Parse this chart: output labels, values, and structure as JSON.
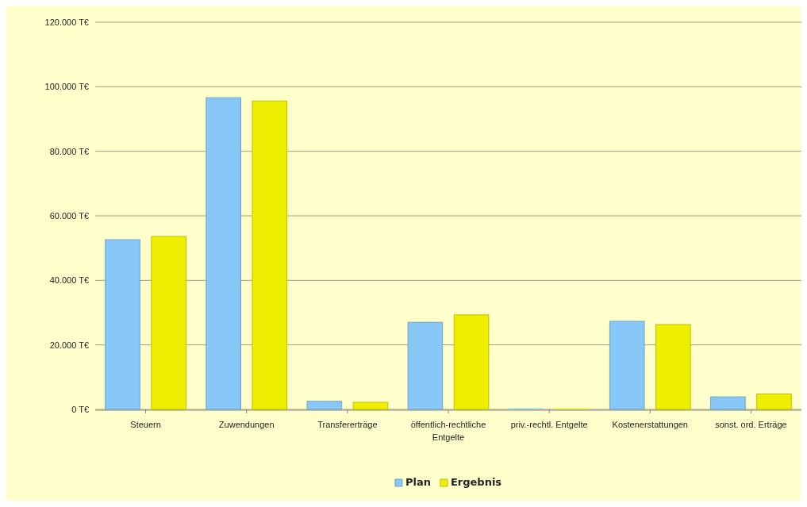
{
  "chart_data": {
    "type": "bar",
    "categories": [
      "Steuern",
      "Zuwendungen",
      "Transfererträge",
      "öffentlich-rechtliche Entgelte",
      "priv.-rechtl. Entgelte",
      "Kostenerstattungen",
      "sonst. ord. Erträge"
    ],
    "series": [
      {
        "name": "Plan",
        "color": "#88c8f8",
        "values": [
          52600,
          96600,
          2500,
          27000,
          300,
          27300,
          3900
        ]
      },
      {
        "name": "Ergebnis",
        "color": "#eeee00",
        "values": [
          53600,
          95600,
          2200,
          29300,
          300,
          26300,
          4800
        ]
      }
    ],
    "ylim": [
      0,
      120000
    ],
    "yticks": [
      {
        "value": 0,
        "label": "0 T€"
      },
      {
        "value": 20000,
        "label": "20.000 T€"
      },
      {
        "value": 40000,
        "label": "40.000 T€"
      },
      {
        "value": 60000,
        "label": "60.000 T€"
      },
      {
        "value": 80000,
        "label": "80.000 T€"
      },
      {
        "value": 100000,
        "label": "100.000 T€"
      },
      {
        "value": 120000,
        "label": "120.000 T€"
      }
    ],
    "grid": "y",
    "legend": "bottom"
  }
}
